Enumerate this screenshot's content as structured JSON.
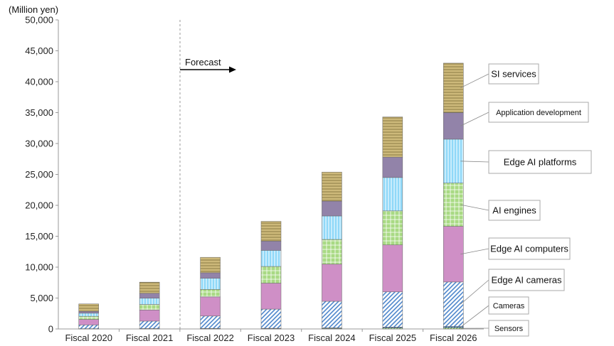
{
  "chart_data": {
    "type": "bar",
    "stacked": true,
    "unit_label": "(Million yen)",
    "ylim": [
      0,
      50000
    ],
    "yticks": [
      "0",
      "5,000",
      "10,000",
      "15,000",
      "20,000",
      "25,000",
      "30,000",
      "35,000",
      "40,000",
      "45,000",
      "50,000"
    ],
    "categories": [
      "Fiscal 2020",
      "Fiscal 2021",
      "Fiscal 2022",
      "Fiscal 2023",
      "Fiscal 2024",
      "Fiscal 2025",
      "Fiscal 2026"
    ],
    "forecast_label": "Forecast",
    "forecast_starts_after": "Fiscal 2021",
    "series": [
      {
        "name": "Sensors",
        "color": "#9bd27a",
        "values": [
          20,
          30,
          40,
          50,
          80,
          150,
          200
        ]
      },
      {
        "name": "Cameras",
        "color": "#3a6ea5",
        "values": [
          30,
          40,
          50,
          60,
          100,
          150,
          200
        ]
      },
      {
        "name": "Edge AI cameras",
        "color": "#5b8fd6",
        "values": [
          600,
          1200,
          2000,
          3100,
          4300,
          5700,
          7200
        ]
      },
      {
        "name": "Edge AI computers",
        "color": "#c987c3",
        "values": [
          900,
          1800,
          3100,
          4200,
          6000,
          7600,
          9000
        ]
      },
      {
        "name": "AI engines",
        "color": "#9bd27a",
        "values": [
          500,
          900,
          1200,
          2700,
          4000,
          5500,
          7000
        ]
      },
      {
        "name": "Edge AI platforms",
        "color": "#7fd0f5",
        "values": [
          500,
          1000,
          1800,
          2600,
          3800,
          5400,
          7100
        ]
      },
      {
        "name": "Application development",
        "color": "#8f7fa8",
        "values": [
          300,
          800,
          900,
          1500,
          2400,
          3300,
          4300
        ]
      },
      {
        "name": "SI services",
        "color": "#c8b477",
        "values": [
          1200,
          1800,
          2500,
          3200,
          4700,
          6500,
          8000
        ]
      }
    ]
  }
}
